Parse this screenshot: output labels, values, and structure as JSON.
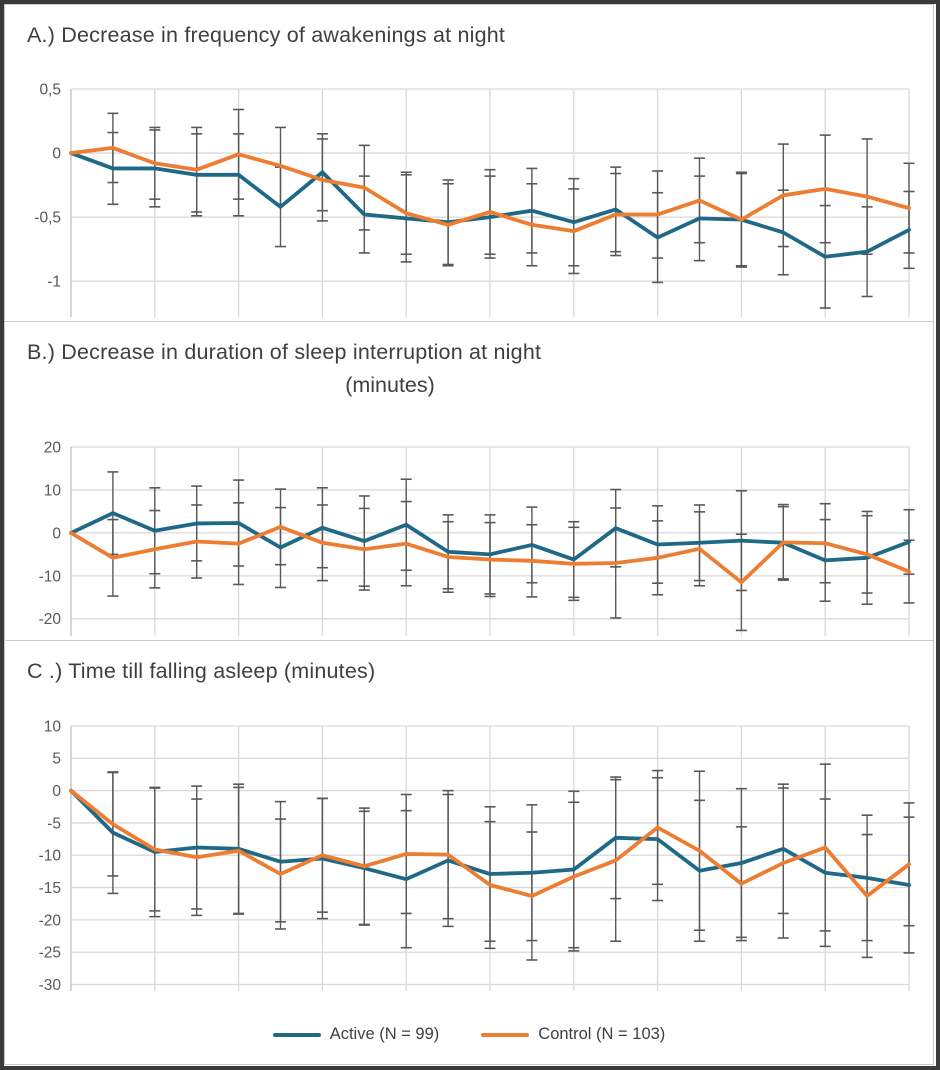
{
  "colors": {
    "active": "#1F6987",
    "control": "#ED7D31",
    "error_bar": "#595959",
    "grid": "#D9D9D9",
    "axis_line": "#BFBFBF",
    "axis_text": "#595959",
    "title_text": "#3F3F3F",
    "outer_border": "#3A3A3A"
  },
  "legend": {
    "items": [
      {
        "label": "Active (N = 99)",
        "color_key": "active"
      },
      {
        "label": "Control (N = 103)",
        "color_key": "control"
      }
    ]
  },
  "chart_data": [
    {
      "id": "A",
      "type": "line",
      "title": "A.) Decrease in frequency of awakenings at night",
      "xlabel": "",
      "ylabel": "",
      "x": [
        0,
        1,
        2,
        3,
        4,
        5,
        6,
        7,
        8,
        9,
        10,
        11,
        12,
        13,
        14,
        15,
        16,
        17,
        18,
        19,
        20
      ],
      "x_tick_labels_visible": false,
      "ylim": [
        -1.28,
        0.5
      ],
      "grid": true,
      "yticks": [
        {
          "v": 0.5,
          "label": "0,5"
        },
        {
          "v": 0,
          "label": "0"
        },
        {
          "v": -0.5,
          "label": "-0,5"
        },
        {
          "v": -1,
          "label": "-1"
        }
      ],
      "series": [
        {
          "name": "Active (N = 99)",
          "color_key": "active",
          "values": [
            0,
            -0.12,
            -0.12,
            -0.17,
            -0.17,
            -0.42,
            -0.15,
            -0.48,
            -0.51,
            -0.54,
            -0.5,
            -0.45,
            -0.54,
            -0.44,
            -0.66,
            -0.51,
            -0.52,
            -0.62,
            -0.81,
            -0.77,
            -0.6
          ],
          "err": [
            0,
            0.28,
            0.3,
            0.32,
            0.32,
            0.31,
            0.3,
            0.3,
            0.34,
            0.33,
            0.32,
            0.33,
            0.34,
            0.33,
            0.35,
            0.33,
            0.36,
            0.33,
            0.4,
            0.35,
            0.3
          ]
        },
        {
          "name": "Control (N = 103)",
          "color_key": "control",
          "values": [
            0,
            0.04,
            -0.08,
            -0.13,
            -0.01,
            -0.1,
            -0.21,
            -0.27,
            -0.47,
            -0.56,
            -0.46,
            -0.56,
            -0.61,
            -0.48,
            -0.48,
            -0.37,
            -0.52,
            -0.33,
            -0.28,
            -0.34,
            -0.43
          ],
          "err": [
            0,
            0.27,
            0.28,
            0.33,
            0.35,
            0.3,
            0.32,
            0.33,
            0.32,
            0.32,
            0.33,
            0.32,
            0.33,
            0.32,
            0.34,
            0.33,
            0.37,
            0.4,
            0.42,
            0.45,
            0.35
          ]
        }
      ]
    },
    {
      "id": "B",
      "type": "line",
      "title": "B.) Decrease in duration of sleep interruption at night",
      "title_line2": "(minutes)",
      "xlabel": "",
      "ylabel": "",
      "x": [
        0,
        1,
        2,
        3,
        4,
        5,
        6,
        7,
        8,
        9,
        10,
        11,
        12,
        13,
        14,
        15,
        16,
        17,
        18,
        19,
        20
      ],
      "x_tick_labels_visible": false,
      "ylim": [
        -24,
        20
      ],
      "grid": true,
      "yticks": [
        {
          "v": 20,
          "label": "20"
        },
        {
          "v": 10,
          "label": "10"
        },
        {
          "v": 0,
          "label": "0"
        },
        {
          "v": -10,
          "label": "-10"
        },
        {
          "v": -20,
          "label": "-20"
        }
      ],
      "series": [
        {
          "name": "Active (N = 99)",
          "color_key": "active",
          "values": [
            0,
            4.6,
            0.5,
            2.2,
            2.3,
            -3.4,
            1.2,
            -1.9,
            1.9,
            -4.4,
            -5.0,
            -2.8,
            -6.2,
            1.1,
            -2.7,
            -2.3,
            -1.8,
            -2.3,
            -6.4,
            -5.8,
            -2.1
          ],
          "err": [
            0,
            9.6,
            10,
            8.7,
            10,
            9.3,
            9.3,
            10.5,
            10.6,
            8.6,
            9.2,
            8.8,
            8.8,
            9.0,
            9.0,
            8.8,
            11.6,
            8.4,
            9.5,
            10.8,
            7.5
          ]
        },
        {
          "name": "Control (N = 103)",
          "color_key": "control",
          "values": [
            0,
            -5.8,
            -3.8,
            -2.0,
            -2.5,
            1.4,
            -2.3,
            -3.8,
            -2.5,
            -5.6,
            -6.2,
            -6.5,
            -7.2,
            -7.0,
            -5.8,
            -3.7,
            -11.5,
            -2.2,
            -2.4,
            -5.0,
            -9.0
          ],
          "err": [
            0,
            8.9,
            9.0,
            8.5,
            9.5,
            8.8,
            8.8,
            9.5,
            9.8,
            8.2,
            8.6,
            8.4,
            8.5,
            12.8,
            8.6,
            8.6,
            11.2,
            8.8,
            9.2,
            9.0,
            7.3
          ]
        }
      ]
    },
    {
      "id": "C",
      "type": "line",
      "title": "C .) Time till falling asleep (minutes)",
      "xlabel": "",
      "ylabel": "",
      "x": [
        0,
        1,
        2,
        3,
        4,
        5,
        6,
        7,
        8,
        9,
        10,
        11,
        12,
        13,
        14,
        15,
        16,
        17,
        18,
        19,
        20
      ],
      "x_tick_labels_visible": false,
      "ylim": [
        -31,
        10
      ],
      "grid": true,
      "yticks": [
        {
          "v": 10,
          "label": "10"
        },
        {
          "v": 5,
          "label": "5"
        },
        {
          "v": 0,
          "label": "0"
        },
        {
          "v": -5,
          "label": "-5"
        },
        {
          "v": -10,
          "label": "-10"
        },
        {
          "v": -15,
          "label": "-15"
        },
        {
          "v": -20,
          "label": "-20"
        },
        {
          "v": -25,
          "label": "-25"
        },
        {
          "v": -30,
          "label": "-30"
        }
      ],
      "series": [
        {
          "name": "Active (N = 99)",
          "color_key": "active",
          "values": [
            0,
            -6.5,
            -9.5,
            -8.8,
            -9.0,
            -11.0,
            -10.5,
            -12.0,
            -13.7,
            -10.8,
            -12.9,
            -12.7,
            -12.2,
            -7.3,
            -7.5,
            -12.4,
            -11.2,
            -9.0,
            -12.7,
            -13.5,
            -14.6
          ],
          "err": [
            0,
            9.4,
            10,
            9.5,
            10,
            9.3,
            9.3,
            8.8,
            10.6,
            10.2,
            10.4,
            10.5,
            12.1,
            9.4,
            9.5,
            10.9,
            11.5,
            10.0,
            11.4,
            9.7,
            10.5
          ]
        },
        {
          "name": "Control (N = 103)",
          "color_key": "control",
          "values": [
            0,
            -5.2,
            -9.1,
            -10.3,
            -9.3,
            -12.9,
            -10.0,
            -11.7,
            -9.8,
            -9.9,
            -14.6,
            -16.3,
            -13.3,
            -10.8,
            -5.7,
            -9.3,
            -14.4,
            -11.2,
            -8.8,
            -16.3,
            -11.4
          ],
          "err": [
            0,
            8.0,
            9.5,
            9.0,
            9.8,
            8.5,
            8.8,
            9.0,
            9.2,
            9.9,
            9.8,
            9.9,
            11.5,
            12.5,
            8.8,
            12.3,
            8.8,
            11.6,
            12.9,
            9.5,
            9.5
          ]
        }
      ]
    }
  ]
}
